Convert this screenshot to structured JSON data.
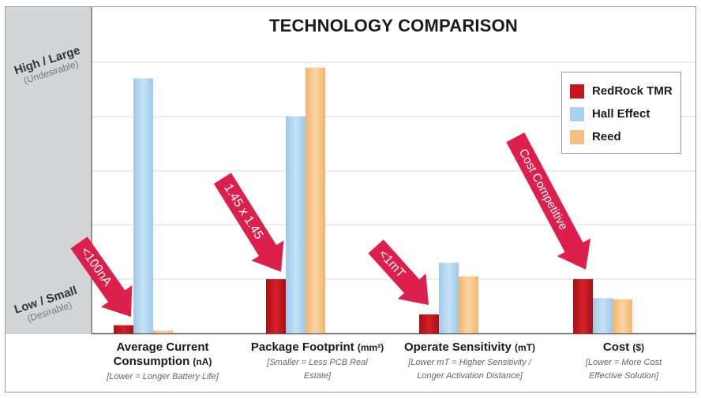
{
  "chart_data": {
    "type": "bar",
    "title": "TECHNOLOGY COMPARISON",
    "y_axis": {
      "top_label": "High / Large",
      "top_sublabel": "(Undesirable)",
      "bottom_label": "Low / Small",
      "bottom_sublabel": "(Desirable)",
      "ylim": [
        0,
        6
      ],
      "grid": true
    },
    "categories": [
      {
        "name": "Average Current Consumption",
        "unit": "(nA)",
        "note": "[Lower = Longer Battery Life]"
      },
      {
        "name": "Package Footprint",
        "unit": "(mm²)",
        "note": "[Smaller = Less PCB Real Estate]"
      },
      {
        "name": "Operate Sensitivity",
        "unit": "(mT)",
        "note": "[Lower mT = Higher Sensitivity / Longer Activation Distance]"
      },
      {
        "name": "Cost",
        "unit": "($)",
        "note": "[Lower = More Cost Effective Solution]"
      }
    ],
    "series": [
      {
        "name": "RedRock TMR",
        "color": "#c4161c",
        "values": [
          0.15,
          1.0,
          0.35,
          1.0
        ]
      },
      {
        "name": "Hall Effect",
        "color": "#a9d2f0",
        "values": [
          4.7,
          4.0,
          1.3,
          0.65
        ]
      },
      {
        "name": "Reed",
        "color": "#f7c082",
        "values": [
          0.05,
          4.9,
          1.05,
          0.63
        ]
      }
    ],
    "legend_position": "top-right",
    "annotations": [
      {
        "text": "<100nA",
        "category": 0
      },
      {
        "text": "1.45 x 1.45",
        "category": 1
      },
      {
        "text": "<1mT",
        "category": 2
      },
      {
        "text": "Cost Competitive",
        "category": 3
      }
    ]
  }
}
